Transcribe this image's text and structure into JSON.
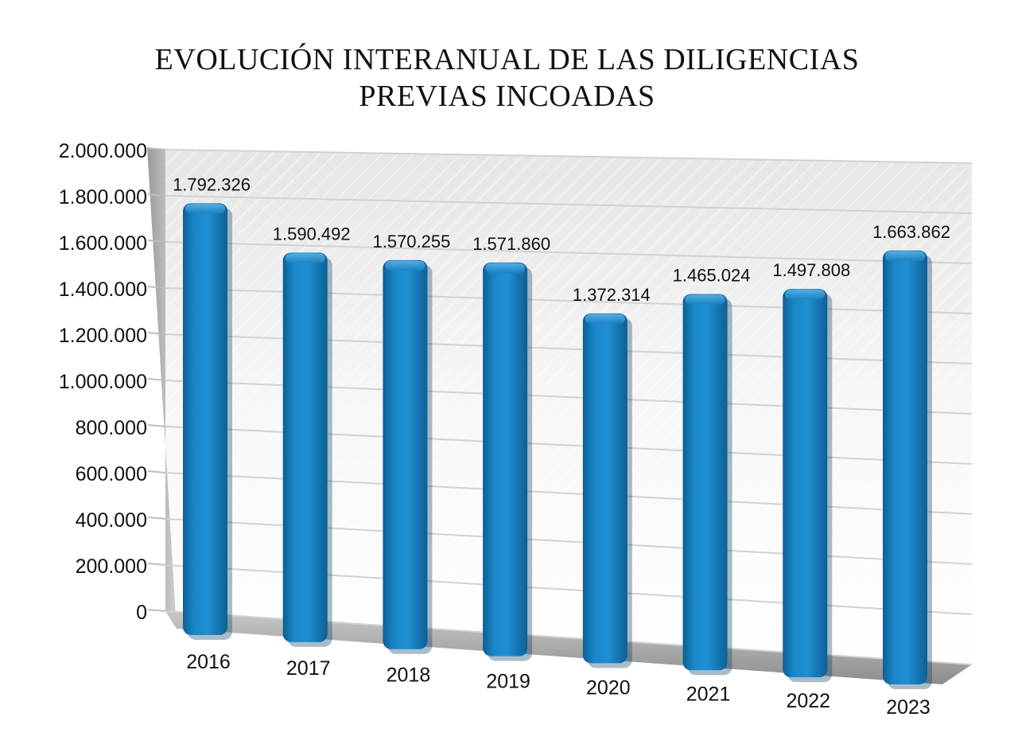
{
  "chart_data": {
    "type": "bar",
    "title_lines": [
      "EVOLUCIÓN INTERANUAL DE LAS DILIGENCIAS",
      "PREVIAS INCOADAS"
    ],
    "categories": [
      "2016",
      "2017",
      "2018",
      "2019",
      "2020",
      "2021",
      "2022",
      "2023"
    ],
    "values": [
      1792326,
      1590492,
      1570255,
      1571860,
      1372314,
      1465024,
      1497808,
      1663862
    ],
    "value_labels": [
      "1.792.326",
      "1.590.492",
      "1.570.255",
      "1.571.860",
      "1.372.314",
      "1.465.024",
      "1.497.808",
      "1.663.862"
    ],
    "ylim": [
      0,
      2000000
    ],
    "ytick_labels": [
      "0",
      "200.000",
      "400.000",
      "600.000",
      "800.000",
      "1.000.000",
      "1.200.000",
      "1.400.000",
      "1.600.000",
      "1.800.000",
      "2.000.000"
    ],
    "grid": true,
    "legend": "none",
    "bar_color": "#1a82c4",
    "bar_shade_color": "#0e5a8c"
  }
}
